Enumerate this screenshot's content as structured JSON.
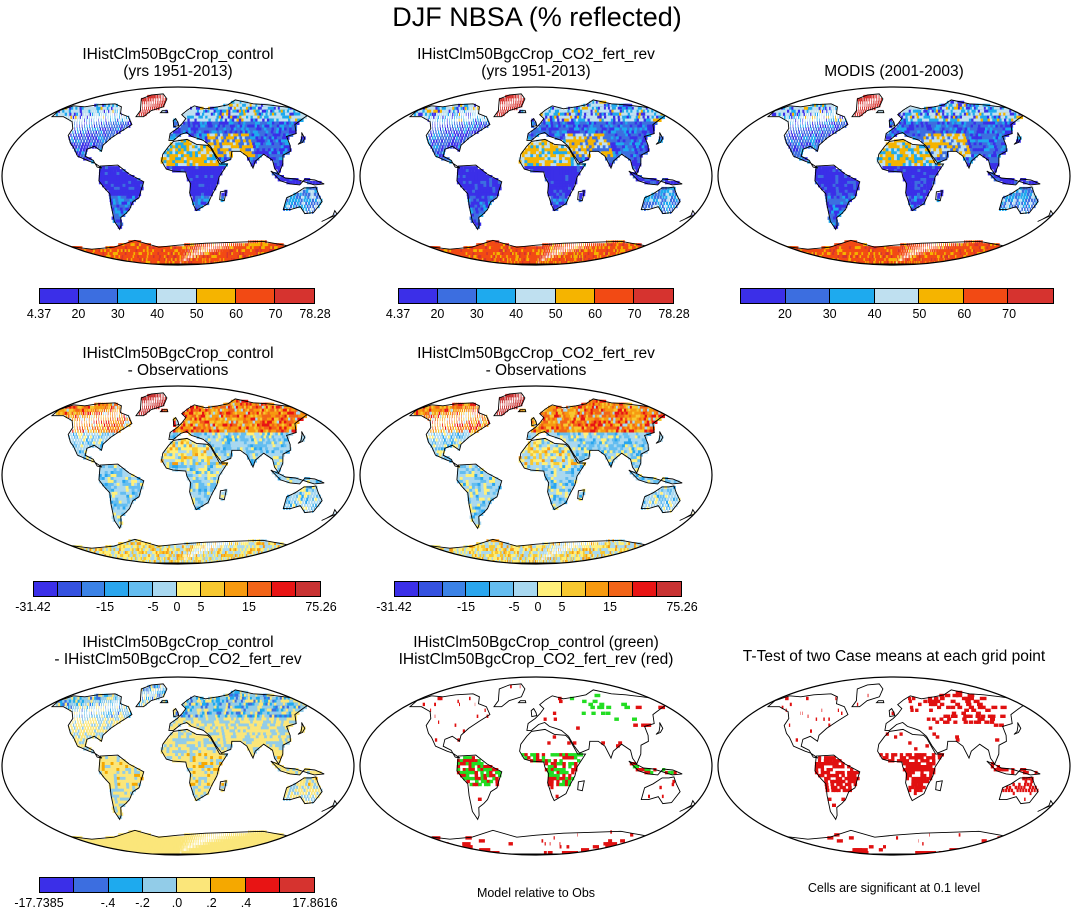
{
  "figure_title": "DJF NBSA (% reflected)",
  "colors": {
    "abs_scale": [
      "#3b2fe8",
      "#3c6ee0",
      "#1eaaee",
      "#bfe0f0",
      "#f5b400",
      "#f24a14",
      "#d6332f"
    ],
    "bias_scale": [
      "#3b2fe8",
      "#3552e0",
      "#3b82e6",
      "#2aa6ee",
      "#64bdf0",
      "#a8d8f0",
      "#fff07a",
      "#f7c830",
      "#f79a10",
      "#f26418",
      "#e81414",
      "#c83232"
    ],
    "diff_scale": [
      "#3b2fe8",
      "#3c6ee0",
      "#1eaaee",
      "#92cce8",
      "#fbe67a",
      "#f5a800",
      "#e81414",
      "#d6332f"
    ],
    "sig_a": "#22dd22",
    "sig_b": "#e01010"
  },
  "chart_data": [
    {
      "type": "heatmap",
      "panel": "control",
      "title_lines": [
        "IHistClm50BgcCrop_control",
        "(yrs 1951-2013)"
      ],
      "colorbar": {
        "tick_labels": [
          "4.37",
          "20",
          "30",
          "40",
          "50",
          "60",
          "70",
          "78.28"
        ],
        "n_colors": 7
      }
    },
    {
      "type": "heatmap",
      "panel": "co2_fert_rev",
      "title_lines": [
        "IHistClm50BgcCrop_CO2_fert_rev",
        "(yrs 1951-2013)"
      ],
      "colorbar": {
        "tick_labels": [
          "4.37",
          "20",
          "30",
          "40",
          "50",
          "60",
          "70",
          "78.28"
        ],
        "n_colors": 7
      }
    },
    {
      "type": "heatmap",
      "panel": "modis",
      "title_lines": [
        "MODIS (2001-2003)"
      ],
      "colorbar": {
        "tick_labels": [
          "20",
          "30",
          "40",
          "50",
          "60",
          "70"
        ],
        "n_colors": 7
      }
    },
    {
      "type": "heatmap",
      "panel": "control_minus_obs",
      "title_lines": [
        "IHistClm50BgcCrop_control",
        "- Observations"
      ],
      "colorbar": {
        "tick_labels": [
          "-31.42",
          "-15",
          "-5",
          "0",
          "5",
          "15",
          "75.26"
        ],
        "n_colors": 12
      }
    },
    {
      "type": "heatmap",
      "panel": "co2_minus_obs",
      "title_lines": [
        "IHistClm50BgcCrop_CO2_fert_rev",
        "- Observations"
      ],
      "colorbar": {
        "tick_labels": [
          "-31.42",
          "-15",
          "-5",
          "0",
          "5",
          "15",
          "75.26"
        ],
        "n_colors": 12
      }
    },
    {
      "type": "heatmap",
      "panel": "control_minus_co2",
      "title_lines": [
        "IHistClm50BgcCrop_control",
        "- IHistClm50BgcCrop_CO2_fert_rev"
      ],
      "colorbar": {
        "tick_labels": [
          "-17.7385",
          "-.4",
          "-.2",
          ".0",
          ".2",
          ".4",
          "17.8616"
        ],
        "n_colors": 8
      }
    },
    {
      "type": "heatmap",
      "panel": "model_relative",
      "title_lines": [
        "IHistClm50BgcCrop_control (green)",
        "IHistClm50BgcCrop_CO2_fert_rev (red)"
      ],
      "note": "Model relative to Obs"
    },
    {
      "type": "heatmap",
      "panel": "ttest",
      "title_lines": [
        "T-Test of two Case means at each grid point"
      ],
      "note": "Cells are significant at 0.1 level"
    }
  ]
}
